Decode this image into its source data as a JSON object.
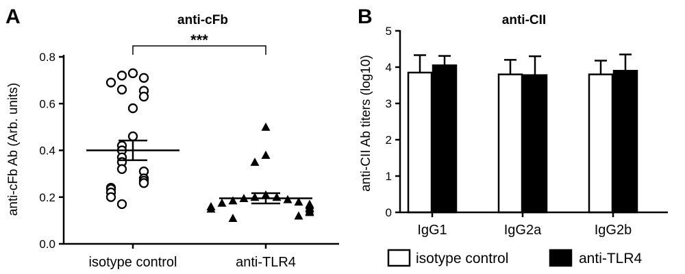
{
  "chart_data": [
    {
      "panel": "A",
      "type": "scatter",
      "title": "anti-cFb",
      "ylabel": "anti-cFb Ab (Arb. units)",
      "ylim": [
        0,
        0.8
      ],
      "yticks": [
        "0.0",
        "0.2",
        "0.4",
        "0.6",
        "0.8"
      ],
      "categories": [
        "isotype control",
        "anti-TLR4"
      ],
      "significance": "***",
      "series": [
        {
          "category": "isotype control",
          "marker": "open-circle",
          "mean": 0.4,
          "sem": 0.042,
          "values": [
            0.73,
            0.72,
            0.71,
            0.69,
            0.66,
            0.655,
            0.63,
            0.58,
            0.46,
            0.42,
            0.4,
            0.37,
            0.35,
            0.32,
            0.31,
            0.28,
            0.27,
            0.26,
            0.24,
            0.235,
            0.22,
            0.2,
            0.17
          ]
        },
        {
          "category": "anti-TLR4",
          "marker": "filled-triangle",
          "mean": 0.195,
          "sem": 0.022,
          "values": [
            0.5,
            0.38,
            0.35,
            0.21,
            0.2,
            0.2,
            0.195,
            0.19,
            0.185,
            0.18,
            0.175,
            0.17,
            0.165,
            0.16,
            0.155,
            0.15,
            0.15,
            0.14,
            0.135,
            0.12,
            0.11
          ]
        }
      ]
    },
    {
      "panel": "B",
      "type": "bar",
      "title": "anti-CII",
      "ylabel": "anti-CII Ab titers (log10)",
      "ylim": [
        0,
        5
      ],
      "yticks": [
        "0",
        "1",
        "2",
        "3",
        "4",
        "5"
      ],
      "categories": [
        "IgG1",
        "IgG2a",
        "IgG2b"
      ],
      "series": [
        {
          "name": "isotype control",
          "fill": "#ffffff",
          "values": [
            3.85,
            3.8,
            3.8
          ],
          "errors": [
            0.48,
            0.4,
            0.38
          ]
        },
        {
          "name": "anti-TLR4",
          "fill": "#000000",
          "values": [
            4.05,
            3.78,
            3.9
          ],
          "errors": [
            0.26,
            0.52,
            0.45
          ]
        }
      ],
      "legend": "bottom"
    }
  ]
}
